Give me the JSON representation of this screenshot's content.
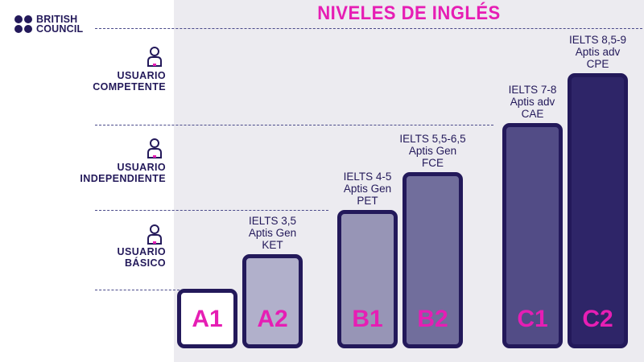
{
  "brand": {
    "line1": "BRITISH",
    "line2": "COUNCIL",
    "color": "#23195a"
  },
  "title": "NIVELES DE INGLÉS",
  "colors": {
    "accent": "#e61eb4",
    "navy": "#23195a",
    "panel": "#ecebf0"
  },
  "chart_data": {
    "type": "bar",
    "title": "NIVELES DE INGLÉS",
    "categories": [
      "A1",
      "A2",
      "B1",
      "B2",
      "C1",
      "C2"
    ],
    "values": [
      1,
      2,
      3,
      4,
      5,
      6
    ],
    "fill_colors": [
      "#ffffff",
      "#b1b0cb",
      "#9795b6",
      "#716e9c",
      "#524c86",
      "#2e2568"
    ],
    "labels": [
      {
        "lines": []
      },
      {
        "lines": [
          "IELTS 3,5",
          "Aptis Gen",
          "KET"
        ]
      },
      {
        "lines": [
          "IELTS 4-5",
          "Aptis Gen",
          "PET"
        ]
      },
      {
        "lines": [
          "IELTS 5,5-6,5",
          "Aptis Gen",
          "FCE"
        ]
      },
      {
        "lines": [
          "IELTS 7-8",
          "Aptis adv",
          "CAE"
        ]
      },
      {
        "lines": [
          "IELTS 8,5-9",
          "Aptis adv",
          "CPE"
        ]
      }
    ],
    "levels": [
      {
        "lines": [
          "USUARIO",
          "BÁSICO"
        ]
      },
      {
        "lines": [
          "USUARIO",
          "INDEPENDIENTE"
        ]
      },
      {
        "lines": [
          "USUARIO",
          "COMPETENTE"
        ]
      }
    ]
  }
}
